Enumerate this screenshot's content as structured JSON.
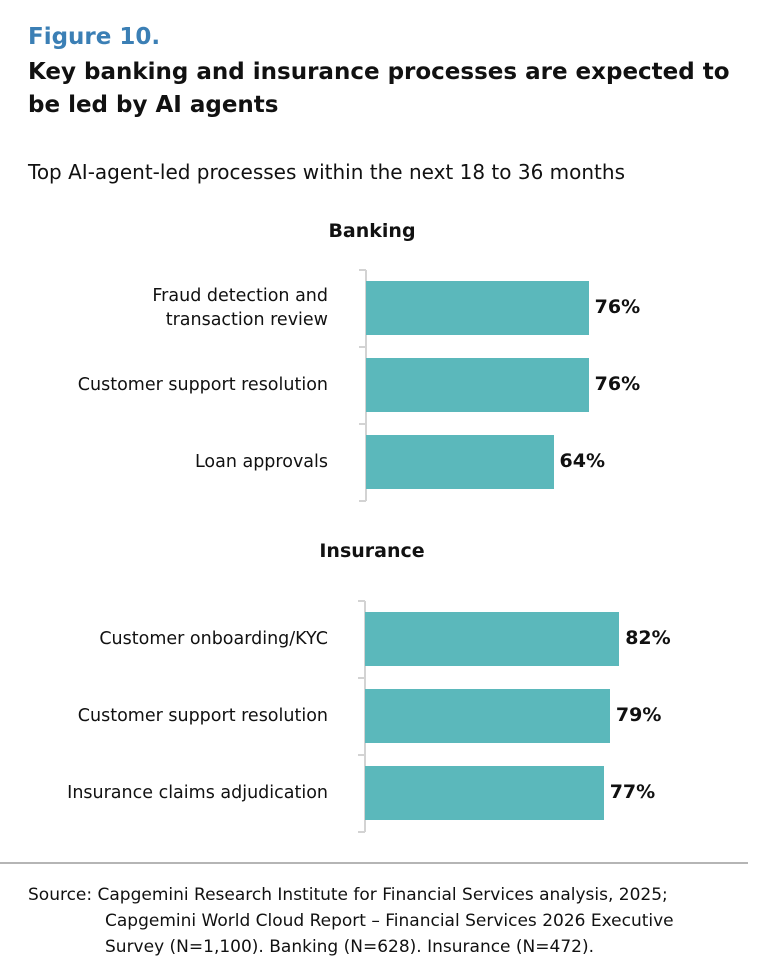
{
  "figure_label": "Figure 10.",
  "title": "Key banking and insurance processes are expected to be led by AI agents",
  "subtitle": "Top AI-agent-led processes within the next 18 to 36 months",
  "colors": {
    "bar": "#5bb8bb",
    "figure_label": "#3b7fb5"
  },
  "chart_data": [
    {
      "type": "bar",
      "orientation": "horizontal",
      "title": "Banking",
      "categories": [
        "Fraud detection and transaction review",
        "Customer support resolution",
        "Loan approvals"
      ],
      "values": [
        76,
        76,
        64
      ],
      "labels": [
        "76%",
        "76%",
        "64%"
      ],
      "unit": "%",
      "xlim": [
        0,
        100
      ]
    },
    {
      "type": "bar",
      "orientation": "horizontal",
      "title": "Insurance",
      "categories": [
        "Customer onboarding/KYC",
        "Customer support resolution",
        "Insurance claims adjudication"
      ],
      "values": [
        82,
        79,
        77
      ],
      "labels": [
        "82%",
        "79%",
        "77%"
      ],
      "unit": "%",
      "xlim": [
        0,
        100
      ]
    }
  ],
  "source": {
    "line1": "Source: Capgemini Research Institute for Financial Services analysis, 2025;",
    "line2": "Capgemini World Cloud Report – Financial Services 2026 Executive",
    "line3": "Survey (N=1,100). Banking (N=628). Insurance (N=472)."
  }
}
